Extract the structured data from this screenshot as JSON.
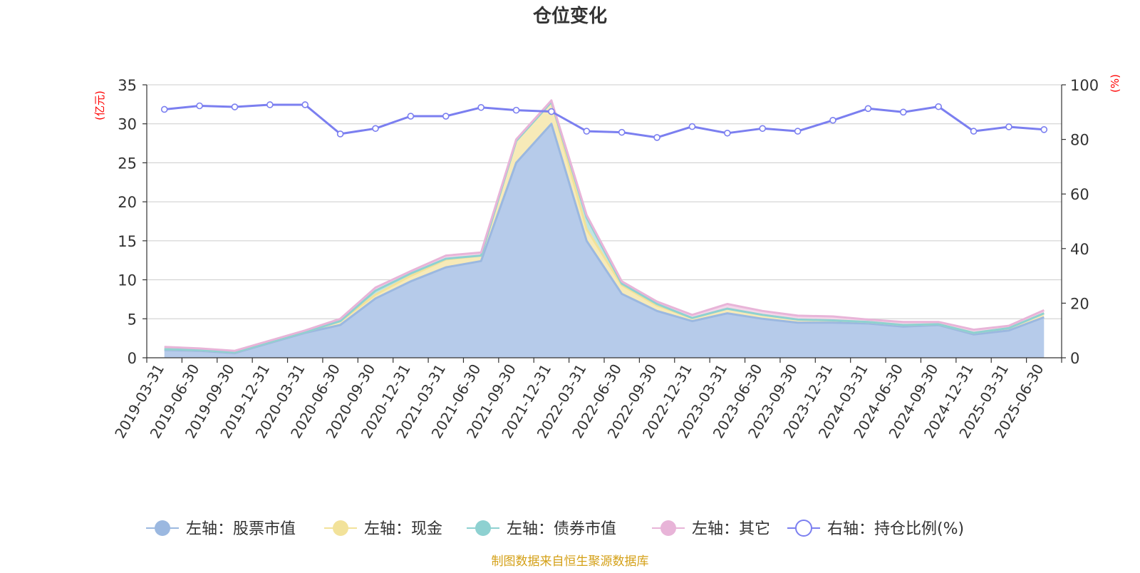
{
  "chart_data": {
    "type": "area",
    "title": "仓位变化",
    "left_axis_unit": "(亿元)",
    "right_axis_unit": "(%)",
    "ylim_left": [
      0,
      35
    ],
    "yticks_left": [
      0,
      5,
      10,
      15,
      20,
      25,
      30,
      35
    ],
    "ylim_right": [
      0,
      100
    ],
    "yticks_right": [
      0,
      20,
      40,
      60,
      80,
      100
    ],
    "grid": true,
    "legend_position": "bottom",
    "categories": [
      "2019-03-31",
      "2019-06-30",
      "2019-09-30",
      "2019-12-31",
      "2020-03-31",
      "2020-06-30",
      "2020-09-30",
      "2020-12-31",
      "2021-03-31",
      "2021-06-30",
      "2021-09-30",
      "2021-12-31",
      "2022-03-31",
      "2022-06-30",
      "2022-09-30",
      "2022-12-31",
      "2023-03-31",
      "2023-06-30",
      "2023-09-30",
      "2023-12-31",
      "2024-03-31",
      "2024-06-30",
      "2024-09-30",
      "2024-12-31",
      "2025-03-31",
      "2025-06-30"
    ],
    "series": [
      {
        "name": "左轴：股票市值",
        "axis": "left",
        "stacked": true,
        "color": "#9bb8e0",
        "fill": "#b6cbea",
        "values": [
          1.0,
          0.9,
          0.6,
          1.9,
          3.2,
          4.2,
          7.6,
          9.8,
          11.6,
          12.4,
          25.0,
          30.0,
          15.0,
          8.2,
          6.0,
          4.7,
          5.7,
          5.0,
          4.5,
          4.5,
          4.4,
          4.0,
          4.2,
          3.0,
          3.5,
          5.2
        ]
      },
      {
        "name": "左轴：现金",
        "axis": "left",
        "stacked": true,
        "color": "#f2e29a",
        "fill": "#f7eab8",
        "values": [
          0.1,
          0.1,
          0.1,
          0.1,
          0.1,
          0.5,
          0.5,
          0.7,
          1.0,
          0.7,
          2.8,
          2.8,
          1.5,
          1.1,
          0.7,
          0.4,
          0.6,
          0.5,
          0.4,
          0.3,
          0.2,
          0.2,
          0.1,
          0.2,
          0.3,
          0.5
        ]
      },
      {
        "name": "左轴：债券市值",
        "axis": "left",
        "stacked": true,
        "color": "#8ed1d1",
        "fill": "#bfe4e4",
        "values": [
          0.0,
          0.0,
          0.0,
          0.0,
          0.0,
          0.0,
          0.5,
          0.3,
          0.1,
          0.0,
          0.0,
          0.0,
          1.5,
          0.2,
          0.2,
          0.0,
          0.0,
          0.0,
          0.0,
          0.0,
          0.0,
          0.0,
          0.0,
          0.0,
          0.0,
          0.0
        ]
      },
      {
        "name": "左轴：其它",
        "axis": "left",
        "stacked": true,
        "color": "#e8b4d8",
        "fill": "#f3d6ea",
        "values": [
          0.3,
          0.2,
          0.2,
          0.2,
          0.2,
          0.3,
          0.4,
          0.3,
          0.4,
          0.4,
          0.2,
          0.2,
          0.3,
          0.3,
          0.3,
          0.4,
          0.6,
          0.5,
          0.5,
          0.5,
          0.3,
          0.4,
          0.3,
          0.4,
          0.3,
          0.4
        ]
      },
      {
        "name": "右轴：持仓比例(%)",
        "axis": "right",
        "stacked": false,
        "color": "#7b7ff0",
        "values": [
          91,
          92.3,
          91.9,
          92.7,
          92.7,
          82,
          84,
          88.5,
          88.5,
          91.7,
          90.7,
          90.2,
          83,
          82.6,
          80.7,
          84.7,
          82.3,
          84,
          83,
          87,
          91.3,
          90,
          92,
          83,
          84.6,
          83.6
        ]
      }
    ]
  },
  "footer": {
    "source": "制图数据来自恒生聚源数据库",
    "source_color": "#d4a017"
  },
  "colors": {
    "axis_unit": "#ff0000",
    "grid": "#cccccc",
    "axis": "#333333",
    "text": "#333333"
  }
}
